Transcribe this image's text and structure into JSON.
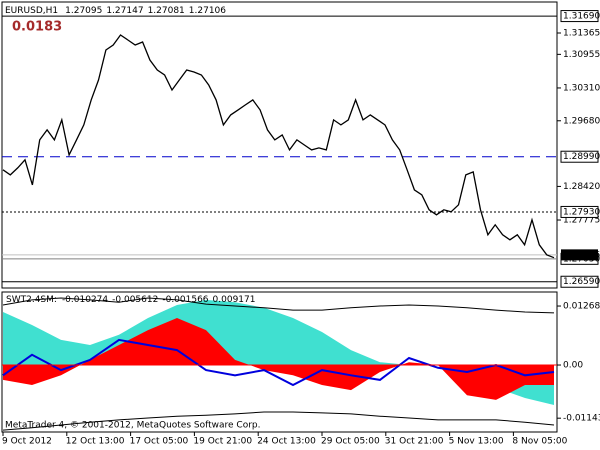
{
  "chart_data": [
    {
      "type": "price-line",
      "title": "EURUSD,H1",
      "ohlc": [
        1.27095,
        1.27147,
        1.27081,
        1.27106
      ],
      "annotation": "0.0183",
      "color": "#000000",
      "values": [
        1.28738,
        1.28642,
        1.28776,
        1.2893,
        1.2845,
        1.29313,
        1.29505,
        1.29313,
        1.29696,
        1.29025,
        1.29313,
        1.296,
        1.3008,
        1.30463,
        1.31038,
        1.31134,
        1.31326,
        1.3123,
        1.31134,
        1.31192,
        1.30847,
        1.30655,
        1.30559,
        1.30271,
        1.30463,
        1.30655,
        1.30616,
        1.30559,
        1.30367,
        1.3008,
        1.296,
        1.29792,
        1.29888,
        1.29984,
        1.3008,
        1.29888,
        1.29505,
        1.29313,
        1.29409,
        1.29121,
        1.29313,
        1.29217,
        1.29121,
        1.2916,
        1.29121,
        1.29696,
        1.296,
        1.29696,
        1.3008,
        1.29696,
        1.29792,
        1.29696,
        1.296,
        1.29313,
        1.29121,
        1.28738,
        1.28354,
        1.28259,
        1.27971,
        1.27875,
        1.27971,
        1.27933,
        1.28067,
        1.28642,
        1.28699,
        1.27971,
        1.27492,
        1.27684,
        1.27492,
        1.27396,
        1.27492,
        1.273,
        1.27779,
        1.273,
        1.27108,
        1.27051
      ],
      "ylim": [
        1.2647,
        1.3196
      ],
      "yticks": [
        1.31365,
        1.30955,
        {
          "value": 1.3031,
          "label": "1.30310"
        },
        {
          "value": 1.2968,
          "label": "1.29680"
        },
        {
          "value": 1.2842,
          "label": "1.28420"
        },
        1.27775
      ],
      "levels": [
        {
          "value": 1.3169,
          "label": "1.31690",
          "style": "solid",
          "color": "#000000"
        },
        {
          "value": 1.2899,
          "label": "1.28990",
          "style": "dashed",
          "color": "#0000cc"
        },
        {
          "value": 1.2793,
          "label": "1.27930",
          "style": "dotted",
          "color": "#000000"
        },
        {
          "value": 1.2703,
          "label": "1.27030",
          "style": "solid",
          "color": "#808080"
        },
        {
          "value": 1.2659,
          "label": "1.26590",
          "style": "solid",
          "color": "#000000"
        }
      ],
      "current": 1.27106,
      "xlabels": [
        "9 Oct 2012",
        "12 Oct 13:00",
        "17 Oct 05:00",
        "19 Oct 21:00",
        "24 Oct 13:00",
        "29 Oct 05:00",
        "31 Oct 21:00",
        "5 Nov 13:00",
        "8 Nov 05:00"
      ]
    },
    {
      "type": "indicator",
      "title": "SWT2.4SM:",
      "readings": [
        -0.010274,
        -0.005612,
        -0.001566,
        0.009171
      ],
      "ylim": [
        -0.0144,
        0.0157
      ],
      "yticks": [
        0.012684,
        {
          "value": 0,
          "label": "0.00"
        },
        -0.01143
      ],
      "zero_color": "#ff0000",
      "series": [
        {
          "kind": "area",
          "color": "#40e0d0",
          "values": [
            0.0114,
            0.0086,
            0.0054,
            0.0043,
            0.0065,
            0.0101,
            0.0129,
            0.014,
            0.0135,
            0.0123,
            0.0101,
            0.0071,
            0.0032,
            0.0006,
            0,
            0,
            -0.0022,
            -0.0049,
            -0.0071,
            -0.0086
          ]
        },
        {
          "kind": "area",
          "color": "#ff0000",
          "values": [
            -0.0032,
            -0.0043,
            -0.0022,
            0.0011,
            0.0043,
            0.0075,
            0.0101,
            0.0075,
            0.0011,
            -0.0011,
            -0.0022,
            -0.0043,
            -0.0054,
            -0.0015,
            0.0006,
            0,
            -0.0065,
            -0.0075,
            -0.0043,
            -0.0043
          ]
        },
        {
          "kind": "line",
          "color": "#000000",
          "values": [
            0.0129,
            0.014,
            0.0144,
            0.014,
            0.0135,
            0.0144,
            0.014,
            0.0131,
            0.0127,
            0.0123,
            0.0118,
            0.0118,
            0.0123,
            0.0127,
            0.0129,
            0.0127,
            0.0123,
            0.0118,
            0.0114,
            0.0112
          ]
        },
        {
          "kind": "line",
          "color": "#000000",
          "values": [
            -0.014,
            -0.0135,
            -0.0129,
            -0.0123,
            -0.0118,
            -0.0114,
            -0.011,
            -0.0108,
            -0.0105,
            -0.0101,
            -0.0101,
            -0.0103,
            -0.0105,
            -0.011,
            -0.0114,
            -0.0118,
            -0.0118,
            -0.0118,
            -0.0123,
            -0.0129
          ]
        },
        {
          "kind": "line",
          "color": "#0000dd",
          "width": 2,
          "values": [
            -0.0022,
            0.0022,
            -0.0011,
            0.0011,
            0.0054,
            0.0043,
            0.0032,
            -0.0011,
            -0.0022,
            -0.0011,
            -0.0043,
            -0.0011,
            -0.0022,
            -0.0032,
            0.0015,
            -0.0006,
            -0.0015,
            0,
            -0.0022,
            -0.0015
          ]
        }
      ]
    }
  ],
  "footer": "MetaTrader 4, © 2001-2012, MetaQuotes Software Corp."
}
